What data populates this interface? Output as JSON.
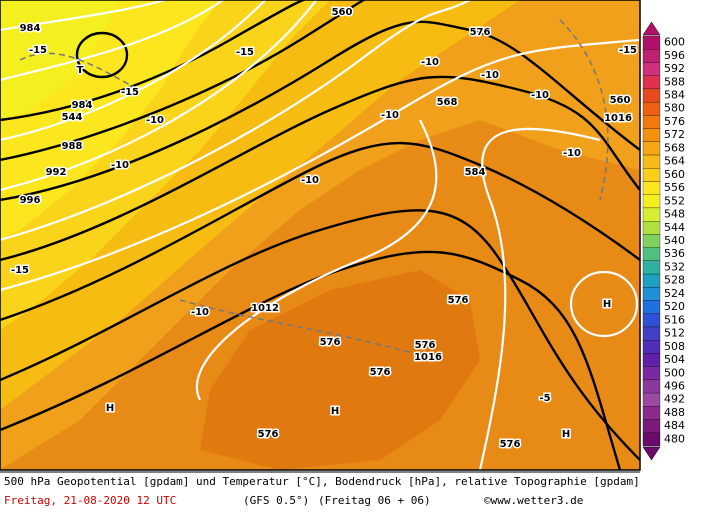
{
  "map": {
    "labels": [
      "984",
      "-15",
      "T",
      "-15",
      "-15",
      "544",
      "984",
      "988",
      "992",
      "996",
      "-10",
      "-10",
      "-10",
      "-10",
      "-10",
      "-10",
      "-10",
      "-15",
      "576",
      "584",
      "568",
      "560",
      "1016",
      "-10",
      "-10",
      "1012",
      "1016",
      "576",
      "576",
      "576",
      "H",
      "H",
      "H",
      "H",
      "-5",
      "-15",
      "576",
      "576",
      "576",
      "560"
    ]
  },
  "legend": {
    "items": [
      {
        "value": 600,
        "color": "#b0106a"
      },
      {
        "value": 596,
        "color": "#c02070"
      },
      {
        "value": 592,
        "color": "#d0307a"
      },
      {
        "value": 588,
        "color": "#e03050"
      },
      {
        "value": 584,
        "color": "#e84a20"
      },
      {
        "value": 580,
        "color": "#ee6010"
      },
      {
        "value": 576,
        "color": "#f07a10"
      },
      {
        "value": 572,
        "color": "#f4920e"
      },
      {
        "value": 568,
        "color": "#f6a612"
      },
      {
        "value": 564,
        "color": "#f8ba16"
      },
      {
        "value": 560,
        "color": "#fad01a"
      },
      {
        "value": 556,
        "color": "#fce61e"
      },
      {
        "value": 552,
        "color": "#f4f020"
      },
      {
        "value": 548,
        "color": "#d6ee30"
      },
      {
        "value": 544,
        "color": "#b0e040"
      },
      {
        "value": 540,
        "color": "#80d060"
      },
      {
        "value": 536,
        "color": "#50c080"
      },
      {
        "value": 532,
        "color": "#30b0a0"
      },
      {
        "value": 528,
        "color": "#20a0c0"
      },
      {
        "value": 524,
        "color": "#2090d8"
      },
      {
        "value": 520,
        "color": "#2070e0"
      },
      {
        "value": 516,
        "color": "#3050d8"
      },
      {
        "value": 512,
        "color": "#4040c8"
      },
      {
        "value": 508,
        "color": "#5030b8"
      },
      {
        "value": 504,
        "color": "#6020a8"
      },
      {
        "value": 500,
        "color": "#7a2aa0"
      },
      {
        "value": 496,
        "color": "#8a3a9a"
      },
      {
        "value": 492,
        "color": "#9a4aa0"
      },
      {
        "value": 488,
        "color": "#8a2a8a"
      },
      {
        "value": 484,
        "color": "#7a1a7a"
      },
      {
        "value": 480,
        "color": "#6a0a6a"
      }
    ]
  },
  "footer": {
    "description": "500 hPa Geopotential [gpdam] und Temperatur [°C], Bodendruck [hPa], relative Topographie [gpdam]",
    "date": "Freitag, 21-08-2020  12 UTC",
    "model": "(GFS 0.5°)",
    "run": "(Freitag 06 + 06)",
    "copyright": "©www.wetter3.de"
  }
}
